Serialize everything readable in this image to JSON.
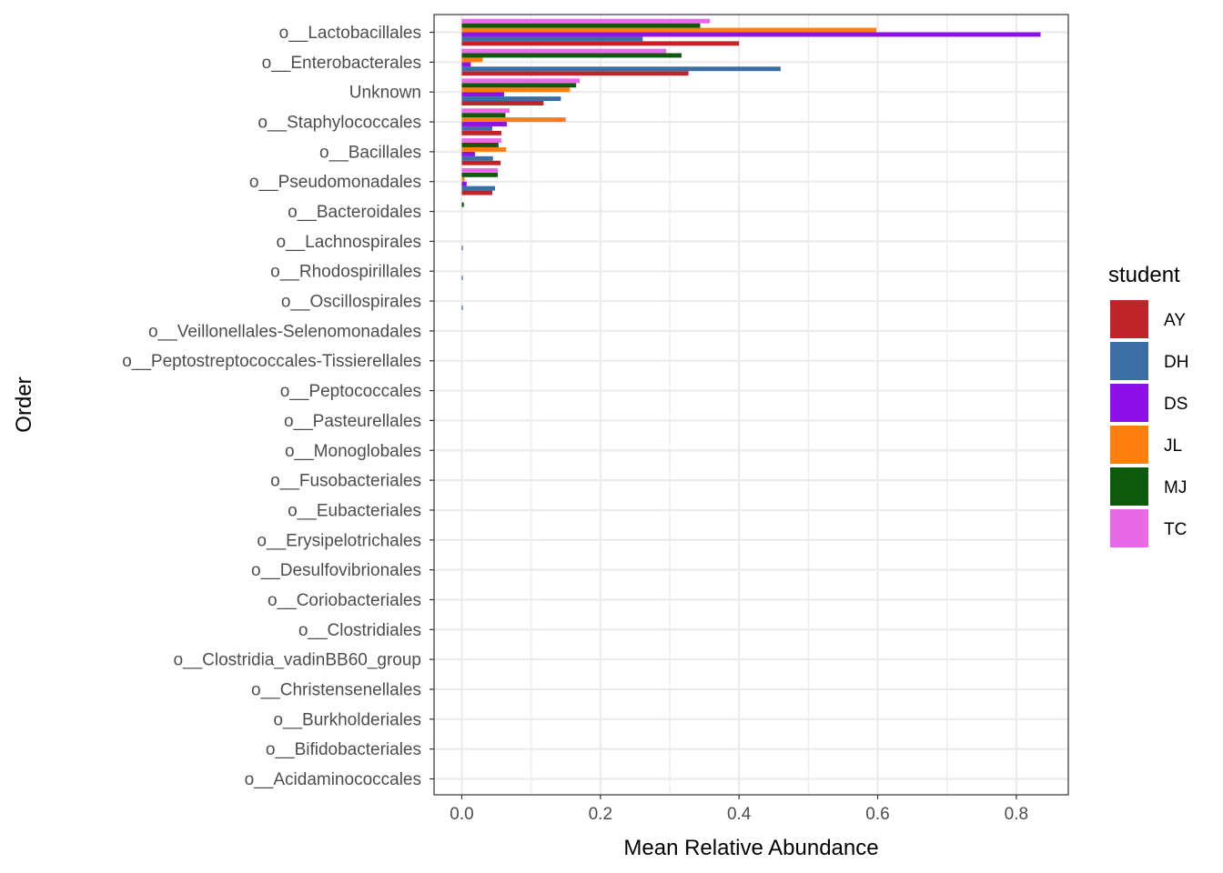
{
  "chart_data": {
    "type": "bar",
    "orientation": "horizontal",
    "xlabel": "Mean Relative Abundance",
    "ylabel": "Order",
    "xlim": [
      -0.04,
      0.875
    ],
    "xticks": [
      0.0,
      0.2,
      0.4,
      0.6,
      0.8
    ],
    "xtick_labels": [
      "0.0",
      "0.2",
      "0.4",
      "0.6",
      "0.8"
    ],
    "grid": true,
    "legend_position": "right",
    "legend_title": "student",
    "categories": [
      "o__Lactobacillales",
      "o__Enterobacterales",
      "Unknown",
      "o__Staphylococcales",
      "o__Bacillales",
      "o__Pseudomonadales",
      "o__Bacteroidales",
      "o__Lachnospirales",
      "o__Rhodospirillales",
      "o__Oscillospirales",
      "o__Veillonellales-Selenomonadales",
      "o__Peptostreptococcales-Tissierellales",
      "o__Peptococcales",
      "o__Pasteurellales",
      "o__Monoglobales",
      "o__Fusobacteriales",
      "o__Eubacteriales",
      "o__Erysipelotrichales",
      "o__Desulfovibrionales",
      "o__Coriobacteriales",
      "o__Clostridiales",
      "o__Clostridia_vadinBB60_group",
      "o__Christensenellales",
      "o__Burkholderiales",
      "o__Bifidobacteriales",
      "o__Acidaminococcales"
    ],
    "series": [
      {
        "name": "AY",
        "color": "#c1232a",
        "values": [
          0.4,
          0.327,
          0.118,
          0.057,
          0.056,
          0.044,
          0,
          0,
          0,
          0,
          0,
          0,
          0,
          0,
          0,
          0,
          0,
          0,
          0,
          0,
          0,
          0,
          0,
          0,
          0,
          0
        ]
      },
      {
        "name": "DH",
        "color": "#3b6ea5",
        "values": [
          0.261,
          0.46,
          0.143,
          0.044,
          0.045,
          0.048,
          0,
          0.001,
          0.001,
          0.001,
          0,
          0,
          0,
          0,
          0,
          0,
          0,
          0,
          0,
          0,
          0,
          0,
          0,
          0,
          0,
          0
        ]
      },
      {
        "name": "DS",
        "color": "#8f0fe8",
        "values": [
          0.835,
          0.013,
          0.061,
          0.065,
          0.019,
          0.007,
          0,
          0,
          0,
          0,
          0,
          0,
          0,
          0,
          0,
          0,
          0,
          0,
          0,
          0,
          0,
          0,
          0,
          0,
          0,
          0
        ]
      },
      {
        "name": "JL",
        "color": "#ff7f0e",
        "values": [
          0.598,
          0.03,
          0.156,
          0.15,
          0.064,
          0.004,
          0,
          0,
          0,
          0,
          0,
          0,
          0,
          0,
          0,
          0,
          0,
          0,
          0,
          0,
          0,
          0,
          0,
          0,
          0,
          0
        ]
      },
      {
        "name": "MJ",
        "color": "#0d5a0d",
        "values": [
          0.344,
          0.317,
          0.165,
          0.063,
          0.053,
          0.052,
          0.003,
          0,
          0,
          0,
          0,
          0,
          0,
          0,
          0,
          0,
          0,
          0,
          0,
          0,
          0,
          0,
          0,
          0,
          0,
          0
        ]
      },
      {
        "name": "TC",
        "color": "#e868e8",
        "values": [
          0.358,
          0.295,
          0.17,
          0.069,
          0.057,
          0.052,
          0,
          0,
          0,
          0,
          0,
          0,
          0,
          0,
          0,
          0,
          0,
          0,
          0,
          0,
          0,
          0,
          0,
          0,
          0,
          0
        ]
      }
    ]
  }
}
